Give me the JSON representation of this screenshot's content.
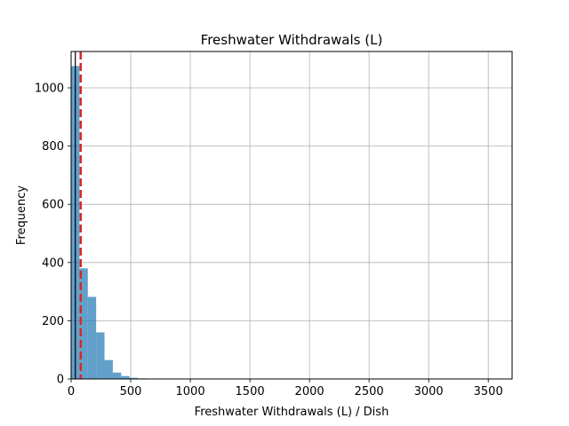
{
  "chart_data": {
    "type": "bar",
    "title": "Freshwater Withdrawals (L)",
    "xlabel": "Freshwater Withdrawals (L) / Dish",
    "ylabel": "Frequency",
    "xlim": [
      0,
      3700
    ],
    "ylim": [
      0,
      1125
    ],
    "xticks": [
      0,
      500,
      1000,
      1500,
      2000,
      2500,
      3000,
      3500
    ],
    "yticks": [
      0,
      200,
      400,
      600,
      800,
      1000
    ],
    "grid": true,
    "bin_width": 70,
    "bins": [
      {
        "x0": 0,
        "x1": 70,
        "count": 1075
      },
      {
        "x0": 70,
        "x1": 140,
        "count": 380
      },
      {
        "x0": 140,
        "x1": 210,
        "count": 282
      },
      {
        "x0": 210,
        "x1": 280,
        "count": 160
      },
      {
        "x0": 280,
        "x1": 350,
        "count": 65
      },
      {
        "x0": 350,
        "x1": 420,
        "count": 22
      },
      {
        "x0": 420,
        "x1": 490,
        "count": 10
      },
      {
        "x0": 490,
        "x1": 560,
        "count": 4
      },
      {
        "x0": 560,
        "x1": 630,
        "count": 2
      },
      {
        "x0": 630,
        "x1": 700,
        "count": 1
      }
    ],
    "reference_lines": [
      {
        "x": 35,
        "style": "solid",
        "color": "#000000"
      },
      {
        "x": 80,
        "style": "dashed",
        "color": "#d62728"
      }
    ],
    "bar_color": "#1f77b4",
    "bar_alpha": 0.7
  }
}
